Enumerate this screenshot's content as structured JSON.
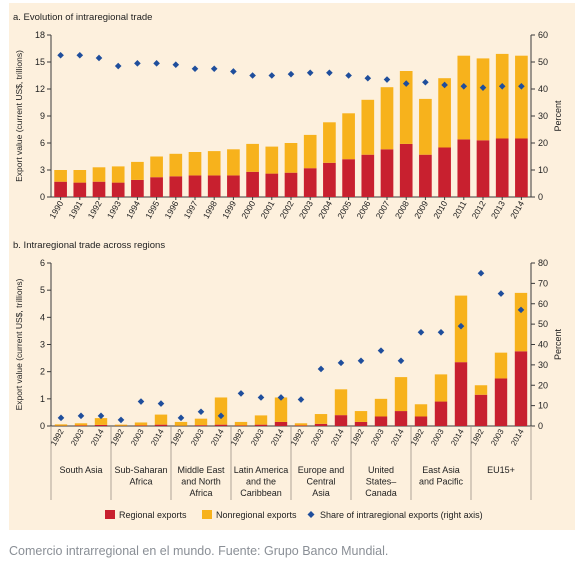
{
  "colors": {
    "background": "#fdf0dd",
    "regional": "#c8202f",
    "nonregional": "#f7b21c",
    "share": "#1f4e9c",
    "axis": "#3a3a3a",
    "grid": "#cfc6b8"
  },
  "caption": "Comercio intrarregional en el mundo. Fuente: Grupo Banco Mundial.",
  "legend": {
    "regional": "Regional exports",
    "nonregional": "Nonregional exports",
    "share": "Share of intraregional exports (right axis)"
  },
  "chart_data": [
    {
      "type": "bar",
      "stacked": true,
      "title": "a. Evolution of intraregional trade",
      "ylabel": "Export value (current US$, trillions)",
      "y2label": "Percent",
      "ylim": [
        0,
        18
      ],
      "y2lim": [
        0,
        60
      ],
      "yticks": [
        0,
        3,
        6,
        9,
        12,
        15,
        18
      ],
      "y2ticks": [
        0,
        10,
        20,
        30,
        40,
        50,
        60
      ],
      "grid": false,
      "legend_position": "bottom",
      "categories": [
        "1990",
        "1991",
        "1992",
        "1993",
        "1994",
        "1995",
        "1996",
        "1997",
        "1998",
        "1999",
        "2000",
        "2001",
        "2002",
        "2003",
        "2004",
        "2005",
        "2006",
        "2007",
        "2008",
        "2009",
        "2010",
        "2011",
        "2012",
        "2013",
        "2014"
      ],
      "series": [
        {
          "name": "Regional exports",
          "values": [
            1.7,
            1.6,
            1.7,
            1.6,
            1.9,
            2.2,
            2.3,
            2.4,
            2.4,
            2.4,
            2.8,
            2.6,
            2.7,
            3.2,
            3.8,
            4.2,
            4.7,
            5.3,
            5.9,
            4.7,
            5.5,
            6.4,
            6.3,
            6.5,
            6.5
          ]
        },
        {
          "name": "Nonregional exports",
          "values": [
            1.3,
            1.4,
            1.6,
            1.8,
            2.0,
            2.3,
            2.5,
            2.6,
            2.7,
            2.9,
            3.1,
            3.0,
            3.3,
            3.7,
            4.5,
            5.1,
            6.1,
            6.9,
            8.1,
            6.2,
            7.7,
            9.3,
            9.1,
            9.4,
            9.2
          ]
        },
        {
          "name": "Share of intraregional exports (right axis)",
          "axis": "right",
          "values": [
            52.5,
            52.5,
            51.5,
            48.5,
            49.5,
            49.5,
            49,
            47.5,
            47.5,
            46.5,
            45,
            45,
            45.5,
            46,
            46,
            45,
            44,
            43.5,
            42,
            42.5,
            41.5,
            41,
            40.5,
            41,
            41
          ]
        }
      ]
    },
    {
      "type": "bar",
      "stacked": true,
      "title": "b. Intraregional trade across regions",
      "ylabel": "Export value (current US$, trillions)",
      "y2label": "Percent",
      "ylim": [
        0,
        6
      ],
      "y2lim": [
        0,
        80
      ],
      "yticks": [
        0,
        1,
        2,
        3,
        4,
        5,
        6
      ],
      "y2ticks": [
        0,
        10,
        20,
        30,
        40,
        50,
        60,
        70,
        80
      ],
      "grid": false,
      "legend_position": "bottom",
      "years": [
        "1992",
        "2003",
        "2014"
      ],
      "groups": [
        {
          "label": "South Asia",
          "regional": [
            0.01,
            0.02,
            0.04
          ],
          "nonregional": [
            0.05,
            0.08,
            0.25
          ],
          "share": [
            4,
            5,
            5
          ]
        },
        {
          "label": "Sub-Saharan\nAfrica",
          "regional": [
            0.01,
            0.02,
            0.05
          ],
          "nonregional": [
            0.04,
            0.11,
            0.37
          ],
          "share": [
            3,
            12,
            11
          ]
        },
        {
          "label": "Middle East\nand North\nAfrica",
          "regional": [
            0.01,
            0.03,
            0.05
          ],
          "nonregional": [
            0.14,
            0.24,
            1.0
          ],
          "share": [
            4,
            7,
            5
          ]
        },
        {
          "label": "Latin America\nand the\nCaribbean",
          "regional": [
            0.02,
            0.05,
            0.15
          ],
          "nonregional": [
            0.13,
            0.34,
            0.9
          ],
          "share": [
            16,
            14,
            14
          ]
        },
        {
          "label": "Europe and\nCentral\nAsia",
          "regional": [
            0.02,
            0.08,
            0.4
          ],
          "nonregional": [
            0.08,
            0.36,
            0.95
          ],
          "share": [
            13,
            28,
            31
          ]
        },
        {
          "label": "United\nStates–\nCanada",
          "regional": [
            0.15,
            0.35,
            0.55
          ],
          "nonregional": [
            0.4,
            0.65,
            1.25
          ],
          "share": [
            32,
            37,
            32
          ]
        },
        {
          "label": "East Asia\nand Pacific",
          "regional": [
            0.35,
            0.9,
            2.35
          ],
          "nonregional": [
            0.45,
            1.0,
            2.45
          ],
          "share": [
            46,
            46,
            49
          ]
        },
        {
          "label": "EU15+",
          "regional": [
            1.15,
            1.75,
            2.75
          ],
          "nonregional": [
            0.35,
            0.95,
            2.15
          ],
          "share": [
            75,
            65,
            57
          ]
        }
      ]
    }
  ]
}
